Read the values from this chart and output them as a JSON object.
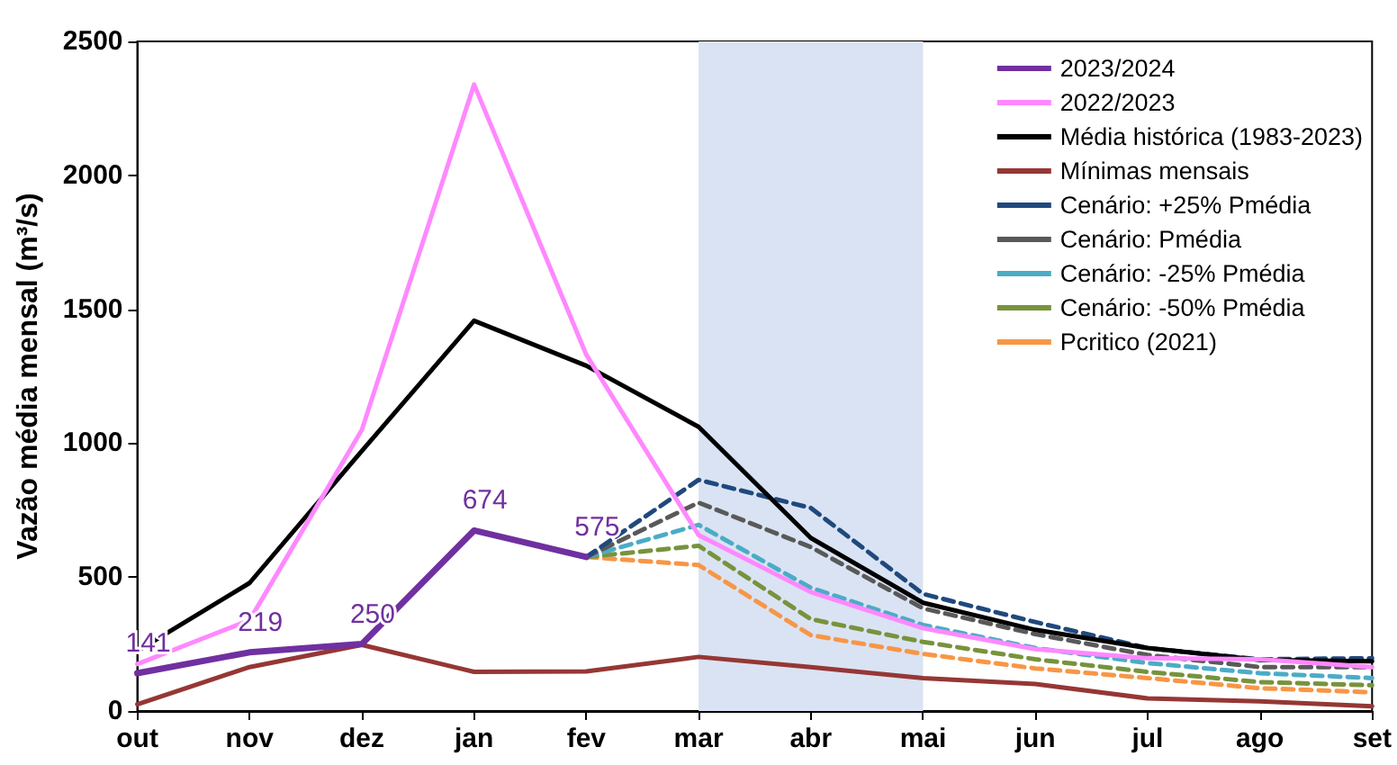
{
  "chart_data": {
    "type": "line",
    "ylabel": "Vazão média mensal (m³/s)",
    "categories": [
      "out",
      "nov",
      "dez",
      "jan",
      "fev",
      "mar",
      "abr",
      "mai",
      "jun",
      "jul",
      "ago",
      "set"
    ],
    "ylim": [
      0,
      2500
    ],
    "yticks": [
      0,
      500,
      1000,
      1500,
      2000,
      2500
    ],
    "grid": false,
    "legend": "top right",
    "marker": "none",
    "bands": [
      {
        "axis": "x",
        "from": "mar",
        "to": "mai",
        "color": "#dae3f3"
      }
    ],
    "series": [
      {
        "name": "2023/2024",
        "color": "#7030a0",
        "line_style": "solid",
        "values": [
          141,
          219,
          250,
          674,
          575,
          null,
          null,
          null,
          null,
          null,
          null,
          null
        ],
        "value_labels": [
          "141",
          "219",
          "250",
          "674",
          "575",
          null,
          null,
          null,
          null,
          null,
          null,
          null
        ]
      },
      {
        "name": "2022/2023",
        "color": "#ff88ff",
        "line_style": "solid",
        "values": [
          175,
          339,
          1049,
          2339,
          1330,
          657,
          444,
          309,
          231,
          197,
          193,
          164
        ]
      },
      {
        "name": "Média histórica (1983-2023)",
        "color": "#000000",
        "line_style": "solid",
        "values": [
          224,
          478,
          971,
          1457,
          1289,
          1061,
          646,
          404,
          303,
          235,
          191,
          186
        ]
      },
      {
        "name": "Mínimas mensais",
        "color": "#953735",
        "line_style": "solid",
        "values": [
          25,
          164,
          247,
          146,
          148,
          202,
          164,
          123,
          101,
          47,
          36,
          18
        ]
      },
      {
        "name": "Cenário: +25% Pmédia",
        "color": "#1f497d",
        "line_style": "dashed",
        "values": [
          null,
          null,
          null,
          null,
          575,
          863,
          758,
          437,
          332,
          235,
          193,
          197
        ]
      },
      {
        "name": "Cenário: Pmédia",
        "color": "#595959",
        "line_style": "dashed",
        "values": [
          null,
          null,
          null,
          null,
          575,
          778,
          612,
          383,
          287,
          209,
          164,
          164
        ]
      },
      {
        "name": "Cenário: -25% Pmédia",
        "color": "#4bacc6",
        "line_style": "dashed",
        "values": [
          null,
          null,
          null,
          null,
          575,
          695,
          460,
          321,
          235,
          179,
          141,
          123
        ]
      },
      {
        "name": "Cenário: -50% Pmédia",
        "color": "#77933c",
        "line_style": "dashed",
        "values": [
          null,
          null,
          null,
          null,
          575,
          617,
          343,
          258,
          193,
          146,
          108,
          96
        ]
      },
      {
        "name": "Pcritico (2021)",
        "color": "#f79646",
        "line_style": "dashed",
        "values": [
          null,
          null,
          null,
          null,
          575,
          545,
          283,
          213,
          159,
          123,
          85,
          70
        ]
      }
    ]
  }
}
